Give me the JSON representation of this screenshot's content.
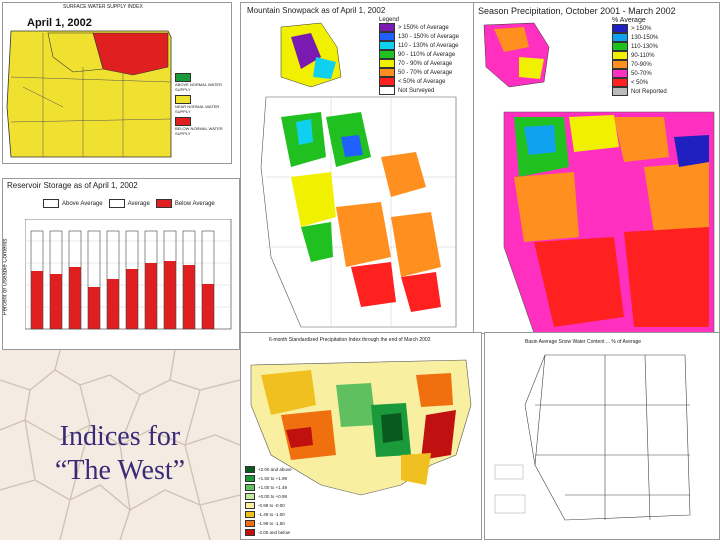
{
  "slide_title": {
    "line1": "Indices for",
    "line2": "“The West”"
  },
  "oregon_map": {
    "header": "SURFACE WATER SUPPLY INDEX",
    "date": "April 1, 2002",
    "legend_items": [
      "ABOVE NORMAL WATER SUPPLY",
      "NEAR NORMAL WATER SUPPLY",
      "BELOW NORMAL WATER SUPPLY"
    ],
    "colors": {
      "above": "#1a9a3a",
      "near": "#f0e030",
      "below": "#e02020"
    }
  },
  "reservoir_chart": {
    "title": "Reservoir Storage as of April 1, 2002",
    "legend": [
      "Above Average",
      "Average",
      "Below Average"
    ],
    "ylabel": "Percent of Useable Contents"
  },
  "snowpack_map": {
    "title": "Mountain Snowpack as of April 1, 2002",
    "legend_title": "Legend",
    "legend_items": [
      "> 150% of Average",
      "130 - 150% of Average",
      "110 - 130% of Average",
      "90 - 110% of Average",
      "70 - 90% of Average",
      "50 - 70% of Average",
      "< 50% of Average",
      "Not Surveyed"
    ],
    "colors": [
      "#7a1ab0",
      "#2060ff",
      "#10d0f0",
      "#20c020",
      "#f0f000",
      "#ff9020",
      "#ff2020",
      "#ffffff"
    ]
  },
  "precip_map": {
    "title": "Season Precipitation, October 2001 - March 2002",
    "legend_title": "% Average",
    "legend_items": [
      "> 150%",
      "130-150%",
      "110-130%",
      "90-110%",
      "70-90%",
      "50-70%",
      "< 50%",
      "Not Reported"
    ],
    "colors": [
      "#2020c0",
      "#10a0f0",
      "#20c020",
      "#f0f000",
      "#ff9020",
      "#ff30c0",
      "#ff2020",
      "#bbbbbb"
    ]
  },
  "us_map": {
    "title": "6-month Standardized Precipitation Index through the end of March 2002",
    "legend_items": [
      "+2.00 and above",
      "+1.50 to +1.99",
      "+1.00 to +1.49",
      "+0.00 to +0.99",
      "-0.99 to -0.00",
      "-1.49 to -1.00",
      "-1.99 to -1.50",
      "-2.00 and below"
    ],
    "colors": [
      "#0a5a20",
      "#1a9a3a",
      "#60c060",
      "#c0e8a0",
      "#f8f0a0",
      "#f0c020",
      "#f07010",
      "#c01010"
    ]
  },
  "basin_map": {
    "title": "Basin Average Snow Water Content ... % of Average"
  }
}
